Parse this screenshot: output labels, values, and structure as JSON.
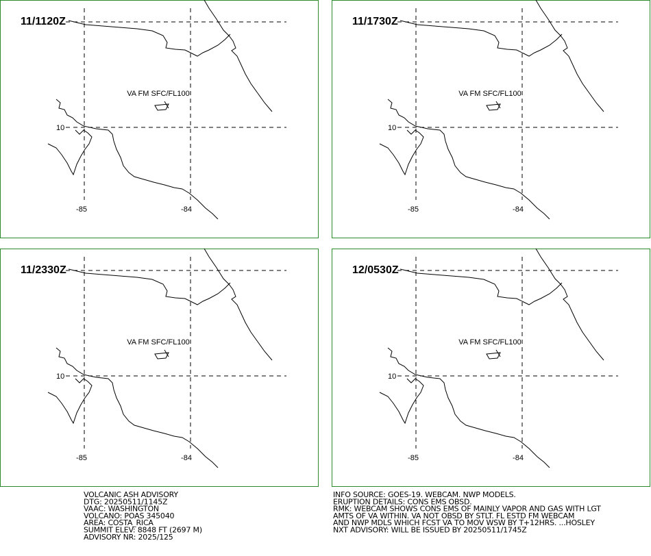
{
  "panels": [
    {
      "time": "11/1120Z",
      "label": "VA FM SFC/FL100"
    },
    {
      "time": "11/1730Z",
      "label": "VA FM SFC/FL100"
    },
    {
      "time": "11/2330Z",
      "label": "VA FM SFC/FL100"
    },
    {
      "time": "12/0530Z",
      "label": "VA FM SFC/FL100"
    }
  ],
  "grid_labels": {
    "lat": "10",
    "lon_west": "-85",
    "lon_east": "-84"
  },
  "advisory_left": [
    "VOLCANIC ASH ADVISORY",
    "DTG: 20250511/1145Z",
    "VAAC: WASHINGTON",
    "VOLCANO: POAS 345040",
    "AREA: COSTA_RICA",
    "SUMMIT ELEV: 8848 FT (2697 M)",
    "ADVISORY NR: 2025/125"
  ],
  "advisory_right": [
    "INFO SOURCE: GOES-19. WEBCAM. NWP MODELS.",
    "ERUPTION DETAILS: CONS EMS OBSD.",
    "RMK: WEBCAM SHOWS CONS EMS OF MAINLY VAPOR AND GAS WITH LGT",
    "AMTS OF VA WITHIN. VA NOT OBSD BY STLT. FL ESTD FM WEBCAM",
    "AND NWP MDLS WHICH FCST VA TO MOV WSW BY T+12HRS. ...HOSLEY",
    "NXT ADVISORY: WILL BE ISSUED BY 20250511/1745Z"
  ]
}
